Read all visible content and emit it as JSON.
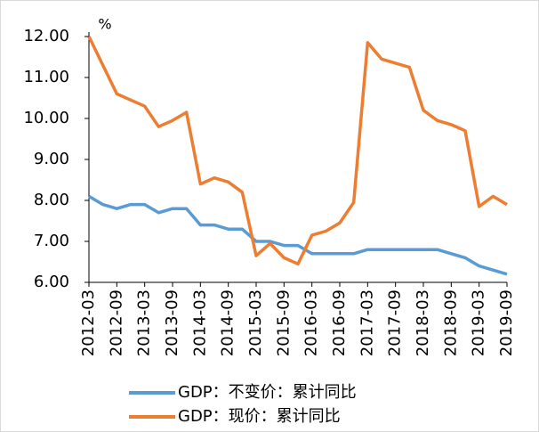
{
  "chart_data": {
    "type": "line",
    "unit_label": "%",
    "categories": [
      "2012-03",
      null,
      "2012-09",
      null,
      "2013-03",
      null,
      "2013-09",
      null,
      "2014-03",
      null,
      "2014-09",
      null,
      "2015-03",
      null,
      "2015-09",
      null,
      "2016-03",
      null,
      "2016-09",
      null,
      "2017-03",
      null,
      "2017-09",
      null,
      "2018-03",
      null,
      "2018-09",
      null,
      "2019-03",
      null,
      "2019-09"
    ],
    "series": [
      {
        "name": "GDP：不变价：累计同比",
        "color": "#5b9bd5",
        "values": [
          8.1,
          7.9,
          7.8,
          7.9,
          7.9,
          7.7,
          7.8,
          7.8,
          7.4,
          7.4,
          7.3,
          7.3,
          7.0,
          7.0,
          6.9,
          6.9,
          6.7,
          6.7,
          6.7,
          6.7,
          6.8,
          6.8,
          6.8,
          6.8,
          6.8,
          6.8,
          6.7,
          6.6,
          6.4,
          6.3,
          6.2
        ]
      },
      {
        "name": "GDP：现价：累计同比",
        "color": "#ed7d31",
        "values": [
          12.0,
          11.3,
          10.6,
          10.45,
          10.3,
          9.8,
          9.95,
          10.15,
          8.4,
          8.55,
          8.45,
          8.2,
          6.65,
          6.95,
          6.6,
          6.45,
          7.15,
          7.25,
          7.45,
          7.95,
          11.85,
          11.45,
          11.35,
          11.25,
          10.2,
          9.95,
          9.85,
          9.7,
          7.85,
          8.1,
          7.9
        ]
      }
    ],
    "ylim": [
      6,
      12
    ],
    "yticks": [
      {
        "value": 6,
        "label": "6.00"
      },
      {
        "value": 7,
        "label": "7.00"
      },
      {
        "value": 8,
        "label": "8.00"
      },
      {
        "value": 9,
        "label": "9.00"
      },
      {
        "value": 10,
        "label": "10.00"
      },
      {
        "value": 11,
        "label": "11.00"
      },
      {
        "value": 12,
        "label": "12.00"
      }
    ],
    "legend": "bottom"
  }
}
